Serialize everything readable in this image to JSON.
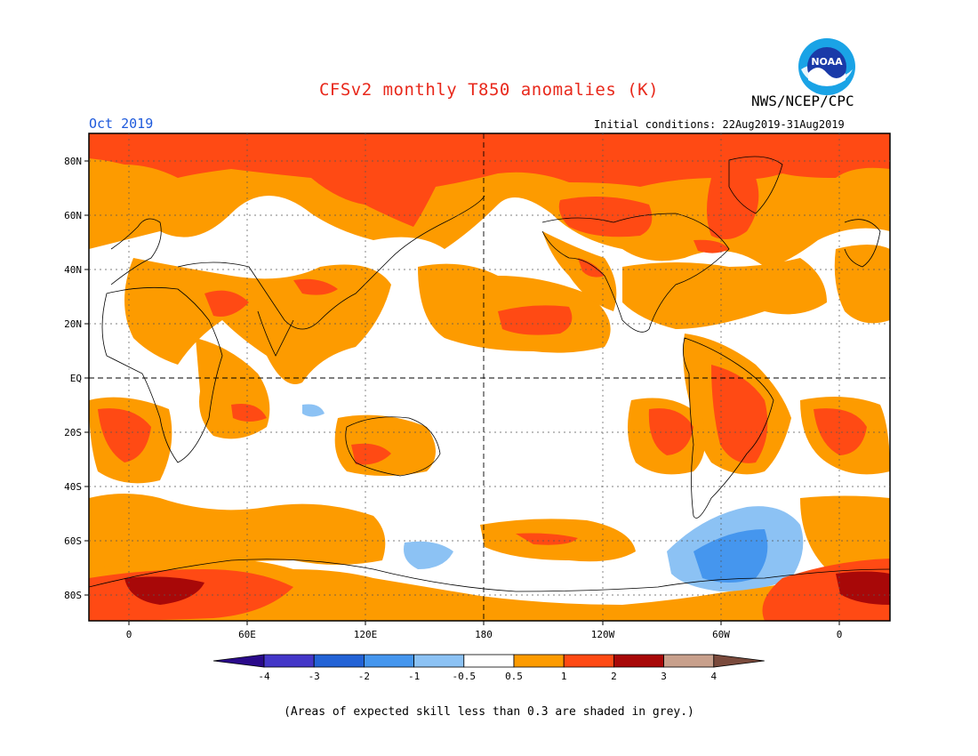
{
  "title": "CFSv2 monthly T850 anomalies (K)",
  "agency": "NWS/NCEP/CPC",
  "month": "Oct 2019",
  "initial_conditions": "Initial conditions: 22Aug2019-31Aug2019",
  "footnote": "(Areas of expected skill less than 0.3 are shaded in grey.)",
  "logo_text": "NOAA",
  "lat_labels": [
    "80N",
    "60N",
    "40N",
    "20N",
    "EQ",
    "20S",
    "40S",
    "60S",
    "80S"
  ],
  "lon_labels": [
    "0",
    "60E",
    "120E",
    "180",
    "120W",
    "60W",
    "0"
  ],
  "colorbar": {
    "tick_labels": [
      "-4",
      "-3",
      "-2",
      "-1",
      "-0.5",
      "0.5",
      "1",
      "2",
      "3",
      "4"
    ],
    "colors": [
      "#2a0a8a",
      "#4437c8",
      "#2363d6",
      "#4596ee",
      "#8cc2f4",
      "#ffffff",
      "#fd9b00",
      "#ff4a14",
      "#a80808",
      "#c8a08c",
      "#7a4a3c"
    ]
  },
  "colors": {
    "title": "#e8281b",
    "month": "#1e5adc",
    "warm_0_5": "#fd9b00",
    "warm_1": "#ff4a14",
    "warm_2": "#a80808",
    "cool_0_5": "#8cc2f4",
    "cool_1": "#4596ee"
  }
}
